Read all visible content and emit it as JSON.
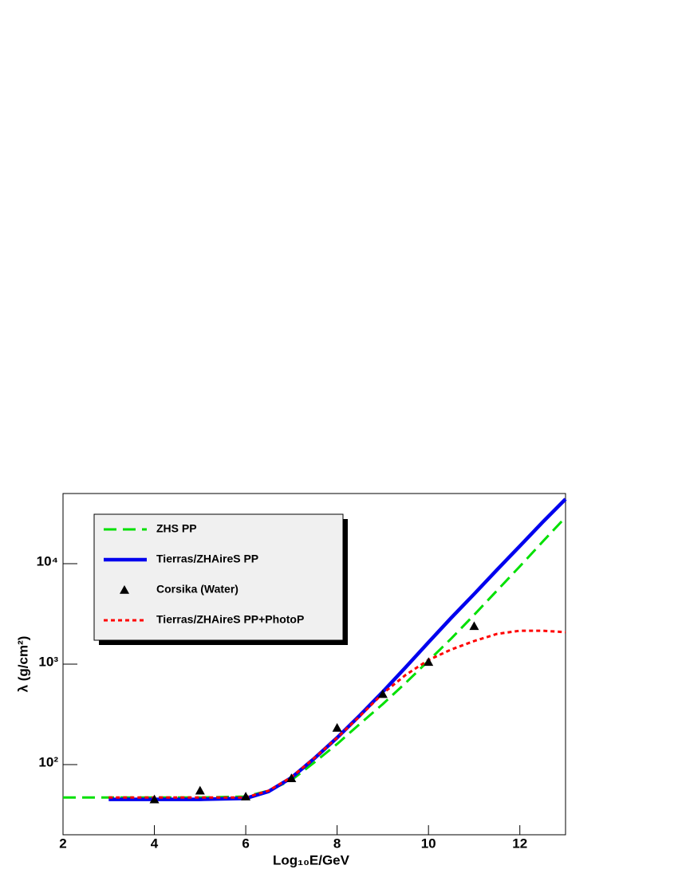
{
  "chart_data": {
    "type": "line",
    "log_y": true,
    "x_label": "Log₁₀E/GeV",
    "y_label": "λ (g/cm²)",
    "xlim": [
      2,
      13
    ],
    "xticks": [
      2,
      4,
      6,
      8,
      10,
      12
    ],
    "ylim": [
      20,
      50000
    ],
    "yticks": [
      {
        "value": 100,
        "label": "10²"
      },
      {
        "value": 1000,
        "label": "10³"
      },
      {
        "value": 10000,
        "label": "10⁴"
      }
    ],
    "legend": "top-left",
    "series": [
      {
        "name": "ZHS PP",
        "color": "#00e000",
        "style": "dashed",
        "x": [
          2,
          3,
          4,
          5,
          6,
          6.5,
          7,
          7.5,
          8,
          8.5,
          9,
          9.5,
          10,
          10.5,
          11,
          11.5,
          12,
          12.5,
          13
        ],
        "values": [
          47,
          47,
          47,
          47,
          48,
          55,
          70,
          105,
          160,
          255,
          400,
          650,
          1080,
          1800,
          3100,
          5400,
          9400,
          16600,
          29000
        ]
      },
      {
        "name": "Tierras/ZHAireS PP",
        "color": "#0000ee",
        "style": "solid",
        "x": [
          3,
          4,
          5,
          6,
          6.5,
          7,
          7.5,
          8,
          8.5,
          9,
          9.5,
          10,
          10.5,
          11,
          11.5,
          12,
          12.5,
          13
        ],
        "values": [
          45,
          45,
          45,
          46,
          54,
          74,
          115,
          185,
          310,
          530,
          930,
          1650,
          2900,
          5000,
          8700,
          15000,
          26000,
          44000
        ]
      },
      {
        "name": "Corsika (Water)",
        "color": "#000000",
        "style": "markers",
        "x": [
          4,
          5,
          6,
          7,
          8,
          9,
          10,
          11
        ],
        "values": [
          45,
          55,
          48,
          73,
          232,
          503,
          1050,
          2390
        ]
      },
      {
        "name": "Tierras/ZHAireS PP+PhotoP",
        "color": "#ff0000",
        "style": "dotted",
        "x": [
          3,
          4,
          5,
          6,
          6.5,
          7,
          7.5,
          8,
          8.5,
          9,
          9.5,
          10,
          10.5,
          11,
          11.5,
          12,
          12.5,
          13
        ],
        "values": [
          47,
          47,
          47,
          47,
          55,
          75,
          116,
          185,
          305,
          510,
          780,
          1100,
          1400,
          1700,
          2000,
          2150,
          2150,
          2080
        ]
      }
    ]
  }
}
